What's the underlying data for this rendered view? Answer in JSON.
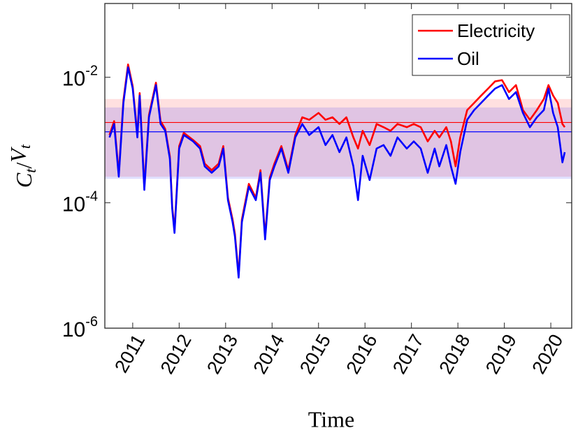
{
  "chart_data": {
    "type": "line",
    "xlabel": "Time",
    "ylabel": "Ct/Vt",
    "log_y": true,
    "xlim": [
      2010.4,
      2020.45
    ],
    "xticks": [
      2011,
      2012,
      2013,
      2014,
      2015,
      2016,
      2017,
      2018,
      2019,
      2020
    ],
    "ylim": [
      1e-06,
      0.15
    ],
    "yticks": [
      {
        "value": 1e-06,
        "label": "10-6"
      },
      {
        "value": 0.0001,
        "label": "10-4"
      },
      {
        "value": 0.01,
        "label": "10-2"
      }
    ],
    "legend": "upper right",
    "x": [
      2010.5,
      2010.6,
      2010.7,
      2010.8,
      2010.9,
      2011.0,
      2011.1,
      2011.15,
      2011.25,
      2011.35,
      2011.5,
      2011.6,
      2011.7,
      2011.8,
      2011.85,
      2011.9,
      2012.0,
      2012.1,
      2012.3,
      2012.45,
      2012.55,
      2012.7,
      2012.85,
      2012.95,
      2013.05,
      2013.15,
      2013.2,
      2013.28,
      2013.35,
      2013.5,
      2013.65,
      2013.75,
      2013.85,
      2013.95,
      2014.05,
      2014.2,
      2014.35,
      2014.5,
      2014.65,
      2014.8,
      2015.0,
      2015.15,
      2015.3,
      2015.45,
      2015.6,
      2015.75,
      2015.85,
      2015.95,
      2016.1,
      2016.25,
      2016.4,
      2016.55,
      2016.7,
      2016.9,
      2017.05,
      2017.2,
      2017.35,
      2017.5,
      2017.6,
      2017.75,
      2017.85,
      2017.95,
      2018.05,
      2018.2,
      2018.35,
      2018.5,
      2018.65,
      2018.8,
      2018.95,
      2019.1,
      2019.25,
      2019.4,
      2019.55,
      2019.7,
      2019.85,
      2019.95,
      2020.05,
      2020.15,
      2020.25,
      2020.3
    ],
    "series": [
      {
        "name": "Electricity",
        "color": "#ff0000",
        "hline": 0.0019,
        "band": [
          0.00026,
          0.0045
        ],
        "values": [
          0.0012,
          0.002,
          0.00029,
          0.0043,
          0.016,
          0.0072,
          0.0012,
          0.0056,
          0.00018,
          0.0025,
          0.0082,
          0.002,
          0.0015,
          0.00055,
          8.8e-05,
          3.6e-05,
          0.0008,
          0.0013,
          0.001,
          0.0008,
          0.00042,
          0.00033,
          0.00042,
          0.0008,
          0.00012,
          5.4e-05,
          3.2e-05,
          7e-06,
          5.4e-05,
          0.0002,
          0.00012,
          0.00033,
          2.9e-05,
          0.00025,
          0.00042,
          0.0008,
          0.00033,
          0.0012,
          0.0023,
          0.0021,
          0.0027,
          0.0021,
          0.0023,
          0.0018,
          0.0023,
          0.0011,
          0.00073,
          0.0014,
          0.00083,
          0.0018,
          0.0016,
          0.0014,
          0.0018,
          0.0016,
          0.0018,
          0.0016,
          0.00095,
          0.0014,
          0.0011,
          0.0016,
          0.00095,
          0.00038,
          0.0011,
          0.003,
          0.0039,
          0.0051,
          0.0066,
          0.0086,
          0.009,
          0.0058,
          0.0075,
          0.003,
          0.0021,
          0.003,
          0.0045,
          0.0075,
          0.0051,
          0.0039,
          0.0018,
          0.0016
        ]
      },
      {
        "name": "Oil",
        "color": "#0000ff",
        "hline": 0.00135,
        "band": [
          0.00024,
          0.0033
        ],
        "values": [
          0.0011,
          0.0018,
          0.00026,
          0.0039,
          0.0144,
          0.0066,
          0.0011,
          0.0051,
          0.00016,
          0.0023,
          0.0075,
          0.0018,
          0.0014,
          0.0005,
          8e-05,
          3.3e-05,
          0.00073,
          0.0012,
          0.00095,
          0.00073,
          0.00038,
          0.0003,
          0.00038,
          0.00073,
          0.00011,
          4.9e-05,
          2.9e-05,
          6.4e-06,
          4.9e-05,
          0.00018,
          0.00011,
          0.0003,
          2.6e-05,
          0.00023,
          0.00038,
          0.00073,
          0.0003,
          0.0011,
          0.0018,
          0.0012,
          0.0016,
          0.00083,
          0.0012,
          0.00064,
          0.0011,
          0.00038,
          0.00011,
          0.00056,
          0.00023,
          0.00073,
          0.00083,
          0.00056,
          0.0011,
          0.00073,
          0.00095,
          0.00073,
          0.0003,
          0.00073,
          0.00038,
          0.00083,
          0.00038,
          0.0002,
          0.00064,
          0.0021,
          0.003,
          0.0039,
          0.0051,
          0.0066,
          0.0075,
          0.0045,
          0.0058,
          0.0027,
          0.0016,
          0.0023,
          0.003,
          0.0066,
          0.0027,
          0.0016,
          0.00044,
          0.00064
        ]
      }
    ]
  }
}
